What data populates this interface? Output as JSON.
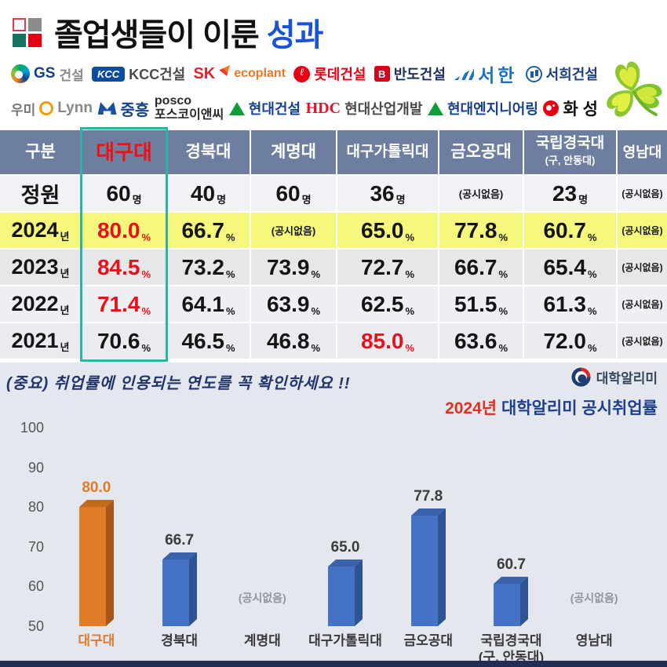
{
  "header": {
    "title": "졸업생들이 이룬",
    "title_accent": "성과",
    "title_accent_color": "#1a53d8",
    "logo_square_colors": [
      "#ffffff",
      "#8b8b8b",
      "#17735f",
      "#e60012"
    ]
  },
  "partners": [
    {
      "t1": "GS",
      "t2": "건설"
    },
    {
      "badge": "KCC",
      "t1": "KCC건설"
    },
    {
      "t1": "SK",
      "t2": "ecoplant"
    },
    {
      "t1": "롯데건설"
    },
    {
      "badge": "B",
      "t1": "반도건설"
    },
    {
      "t1": "서한"
    },
    {
      "t1": "서희건설"
    },
    {
      "t1": "우미",
      "t2": "Lynn"
    },
    {
      "t1": "중흥"
    },
    {
      "t1": "posco",
      "t2": "포스코이앤씨"
    },
    {
      "t1": "현대건설"
    },
    {
      "t1": "HDC",
      "t2": "현대산업개발"
    },
    {
      "t1": "현대엔지니어링"
    },
    {
      "t1": "화 성"
    }
  ],
  "table": {
    "highlight_column": "대구대",
    "highlight_border_color": "#2bb3a3",
    "header_bg": "#6d7ea0",
    "row_2024_bg": "#f5f87c",
    "headers": [
      {
        "main": "구분"
      },
      {
        "main": "대구대",
        "red": true
      },
      {
        "main": "경북대"
      },
      {
        "main": "계명대"
      },
      {
        "main": "대구가톨릭대"
      },
      {
        "main": "금오공대"
      },
      {
        "main": "국립경국대",
        "sub": "(구, 안동대)"
      },
      {
        "main": "영남대"
      }
    ],
    "rows": [
      {
        "label": "정원",
        "label_suffix": "",
        "cells": [
          {
            "v": "60",
            "u": "명"
          },
          {
            "v": "40",
            "u": "명"
          },
          {
            "v": "60",
            "u": "명"
          },
          {
            "v": "36",
            "u": "명"
          },
          {
            "v": "(공시없음)",
            "u": ""
          },
          {
            "v": "23",
            "u": "명"
          },
          {
            "v": "(공시없음)",
            "u": ""
          }
        ]
      },
      {
        "label": "2024",
        "label_suffix": "년",
        "cells": [
          {
            "v": "80.0",
            "u": "%",
            "red": true
          },
          {
            "v": "66.7",
            "u": "%"
          },
          {
            "v": "(공시없음)",
            "u": ""
          },
          {
            "v": "65.0",
            "u": "%"
          },
          {
            "v": "77.8",
            "u": "%"
          },
          {
            "v": "60.7",
            "u": "%"
          },
          {
            "v": "(공시없음)",
            "u": ""
          }
        ]
      },
      {
        "label": "2023",
        "label_suffix": "년",
        "cells": [
          {
            "v": "84.5",
            "u": "%",
            "red": true
          },
          {
            "v": "73.2",
            "u": "%"
          },
          {
            "v": "73.9",
            "u": "%"
          },
          {
            "v": "72.7",
            "u": "%"
          },
          {
            "v": "66.7",
            "u": "%"
          },
          {
            "v": "65.4",
            "u": "%"
          },
          {
            "v": "(공시없음)",
            "u": ""
          }
        ]
      },
      {
        "label": "2022",
        "label_suffix": "년",
        "cells": [
          {
            "v": "71.4",
            "u": "%",
            "red": true
          },
          {
            "v": "64.1",
            "u": "%"
          },
          {
            "v": "63.9",
            "u": "%"
          },
          {
            "v": "62.5",
            "u": "%"
          },
          {
            "v": "51.5",
            "u": "%"
          },
          {
            "v": "61.3",
            "u": "%"
          },
          {
            "v": "(공시없음)",
            "u": ""
          }
        ]
      },
      {
        "label": "2021",
        "label_suffix": "년",
        "cells": [
          {
            "v": "70.6",
            "u": "%"
          },
          {
            "v": "46.5",
            "u": "%"
          },
          {
            "v": "46.8",
            "u": "%"
          },
          {
            "v": "85.0",
            "u": "%",
            "red": true
          },
          {
            "v": "63.6",
            "u": "%"
          },
          {
            "v": "72.0",
            "u": "%"
          },
          {
            "v": "(공시없음)",
            "u": ""
          }
        ]
      }
    ]
  },
  "bottom": {
    "note": "(중요) 취업률에 인용되는 연도를 꼭 확인하세요 !!",
    "source_name": "대학알리미",
    "chart_title_year": "2024년",
    "chart_title_rest": " 대학알리미 공시취업률"
  },
  "chart_data": {
    "type": "bar",
    "title": "2024년 대학알리미 공시취업률",
    "categories": [
      "대구대",
      "경북대",
      "계명대",
      "대구가톨릭대",
      "금오공대",
      "국립경국대\n(구, 안동대)",
      "영남대"
    ],
    "values": [
      80.0,
      66.7,
      null,
      65.0,
      77.8,
      60.7,
      null
    ],
    "labels": [
      "80.0",
      "66.7",
      "(공시없음)",
      "65.0",
      "77.8",
      "60.7",
      "(공시없음)"
    ],
    "ylim": [
      50,
      100
    ],
    "yticks": [
      100,
      90,
      80,
      70,
      60,
      50
    ],
    "grid": false,
    "legend": null,
    "highlight_index": 0,
    "colors": {
      "highlight": {
        "front": "#e07b28",
        "side": "#a5571c",
        "top": "#c2691f",
        "label": "#e07b28"
      },
      "default": {
        "front": "#4472c4",
        "side": "#2e5494",
        "top": "#3a63ab",
        "label": "#3b3b3b"
      },
      "no_data": "#8f959e"
    }
  }
}
